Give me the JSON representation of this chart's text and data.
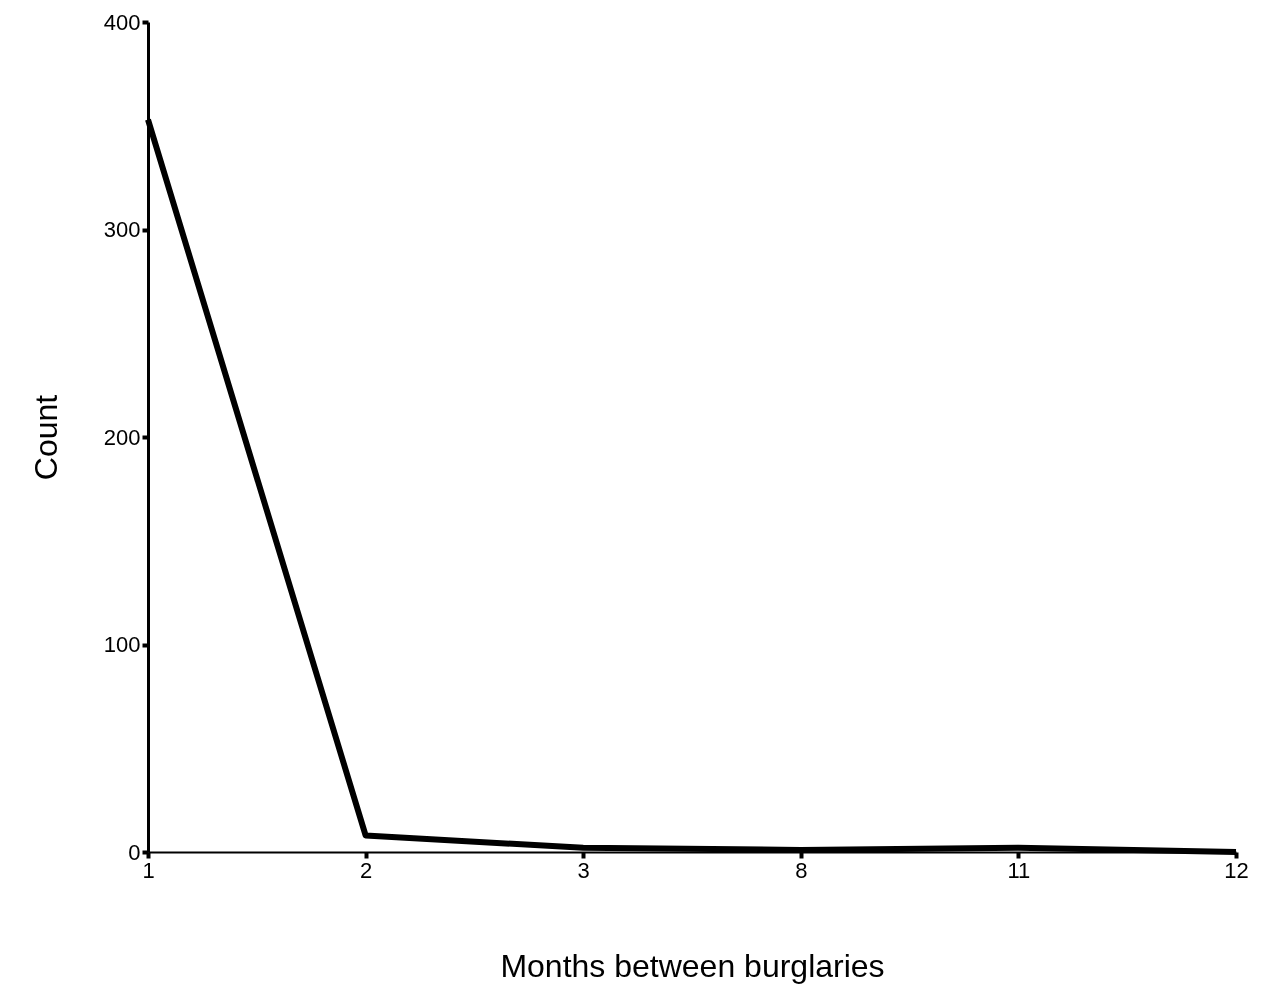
{
  "chart_data": {
    "type": "line",
    "xlabel": "Months between burglaries",
    "ylabel": "Count",
    "categories": [
      "1",
      "2",
      "3",
      "8",
      "11",
      "12"
    ],
    "series": [
      {
        "color": "#000000",
        "values": [
          353,
          8,
          2,
          1,
          2,
          0
        ]
      }
    ],
    "ylim": [
      0,
      400
    ],
    "yticks": [
      0,
      100,
      200,
      300,
      400
    ],
    "grid": false,
    "marker": "none",
    "line_style": "solid"
  }
}
